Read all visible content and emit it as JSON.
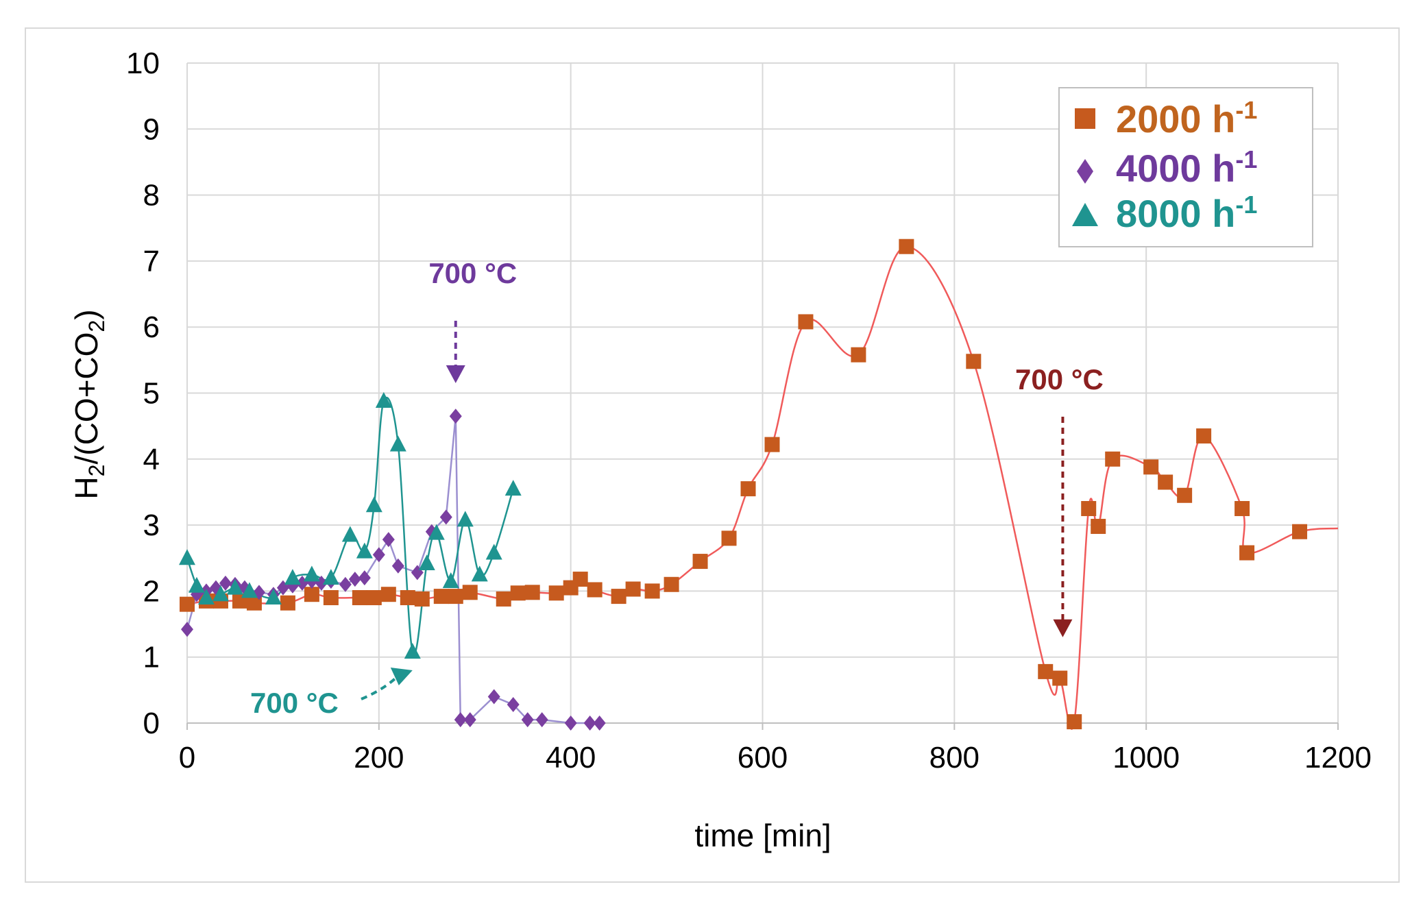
{
  "chart_data": {
    "type": "line",
    "xlabel": "time [min]",
    "ylabel": {
      "main": "H",
      "sub1": "2",
      "mid": "/(CO+CO",
      "sub2": "2",
      "end": ")"
    },
    "xlim": [
      0,
      1200
    ],
    "ylim": [
      0,
      10
    ],
    "xticks": [
      "0",
      "200",
      "400",
      "600",
      "800",
      "1000",
      "1200"
    ],
    "yticks": [
      "0",
      "1",
      "2",
      "3",
      "4",
      "5",
      "6",
      "7",
      "8",
      "9",
      "10"
    ],
    "grid": true,
    "legend_position": "top-right",
    "series": [
      {
        "name": "2000 h",
        "name_sup": "-1",
        "marker": "square",
        "marker_color": "#c65a1e",
        "line_color": "#f05a5a",
        "text_color": "#c0641e",
        "x": [
          0,
          20,
          35,
          55,
          70,
          105,
          130,
          150,
          180,
          195,
          210,
          230,
          245,
          265,
          280,
          295,
          330,
          345,
          360,
          385,
          400,
          410,
          425,
          450,
          465,
          485,
          505,
          535,
          565,
          585,
          610,
          645,
          700,
          750,
          820,
          895,
          910,
          925,
          940,
          950,
          965,
          1005,
          1020,
          1040,
          1060,
          1100,
          1105,
          1160,
          1200
        ],
        "y": [
          1.8,
          1.85,
          1.85,
          1.85,
          1.82,
          1.82,
          1.95,
          1.9,
          1.9,
          1.9,
          1.95,
          1.9,
          1.88,
          1.92,
          1.92,
          1.98,
          1.88,
          1.97,
          1.98,
          1.97,
          2.05,
          2.18,
          2.02,
          1.92,
          2.03,
          2.0,
          2.1,
          2.45,
          2.8,
          3.55,
          4.22,
          6.08,
          5.58,
          7.22,
          5.48,
          0.78,
          0.68,
          0.02,
          3.25,
          2.98,
          4.0,
          3.88,
          3.65,
          3.45,
          4.35,
          3.25,
          2.58,
          2.9,
          2.95
        ],
        "marker_count": 48
      },
      {
        "name": "4000 h",
        "name_sup": "-1",
        "marker": "diamond",
        "marker_color": "#7a3fa0",
        "line_color": "#9b8fd0",
        "text_color": "#6e3a9c",
        "x": [
          0,
          10,
          20,
          30,
          40,
          50,
          60,
          75,
          90,
          100,
          110,
          120,
          130,
          140,
          150,
          165,
          175,
          185,
          200,
          210,
          220,
          240,
          255,
          270,
          280,
          285,
          295,
          320,
          340,
          355,
          370,
          400,
          420,
          430
        ],
        "y": [
          1.42,
          1.95,
          2.0,
          2.05,
          2.12,
          2.1,
          2.05,
          1.98,
          1.95,
          2.05,
          2.08,
          2.12,
          2.15,
          2.12,
          2.15,
          2.1,
          2.18,
          2.2,
          2.55,
          2.78,
          2.38,
          2.28,
          2.9,
          3.12,
          4.65,
          0.05,
          0.05,
          0.4,
          0.28,
          0.05,
          0.05,
          0.0,
          0.0,
          0.0
        ]
      },
      {
        "name": "8000 h",
        "name_sup": "-1",
        "marker": "triangle",
        "marker_color": "#1f9490",
        "line_color": "#1f9490",
        "text_color": "#1f9490",
        "x": [
          0,
          10,
          20,
          35,
          50,
          65,
          90,
          110,
          130,
          150,
          170,
          185,
          195,
          205,
          220,
          235,
          250,
          260,
          275,
          290,
          305,
          320,
          340
        ],
        "y": [
          2.5,
          2.08,
          1.9,
          1.95,
          2.05,
          2.0,
          1.9,
          2.2,
          2.25,
          2.2,
          2.85,
          2.6,
          3.3,
          4.88,
          4.22,
          1.08,
          2.42,
          2.88,
          2.15,
          3.08,
          2.25,
          2.58,
          3.55
        ]
      }
    ],
    "annotations": [
      {
        "text": "700 °C",
        "color": "#6e3a9c",
        "arrow_color": "#6e3a9c",
        "target_x": 280,
        "target_y": 5.15
      },
      {
        "text": "700 °C",
        "color": "#8b2020",
        "arrow_color": "#8b2020",
        "target_x": 913,
        "target_y": 1.3
      },
      {
        "text": "700 °C",
        "color": "#1f9490",
        "arrow_color": "#1f9490",
        "target_x": 235,
        "target_y": 0.8
      }
    ]
  }
}
